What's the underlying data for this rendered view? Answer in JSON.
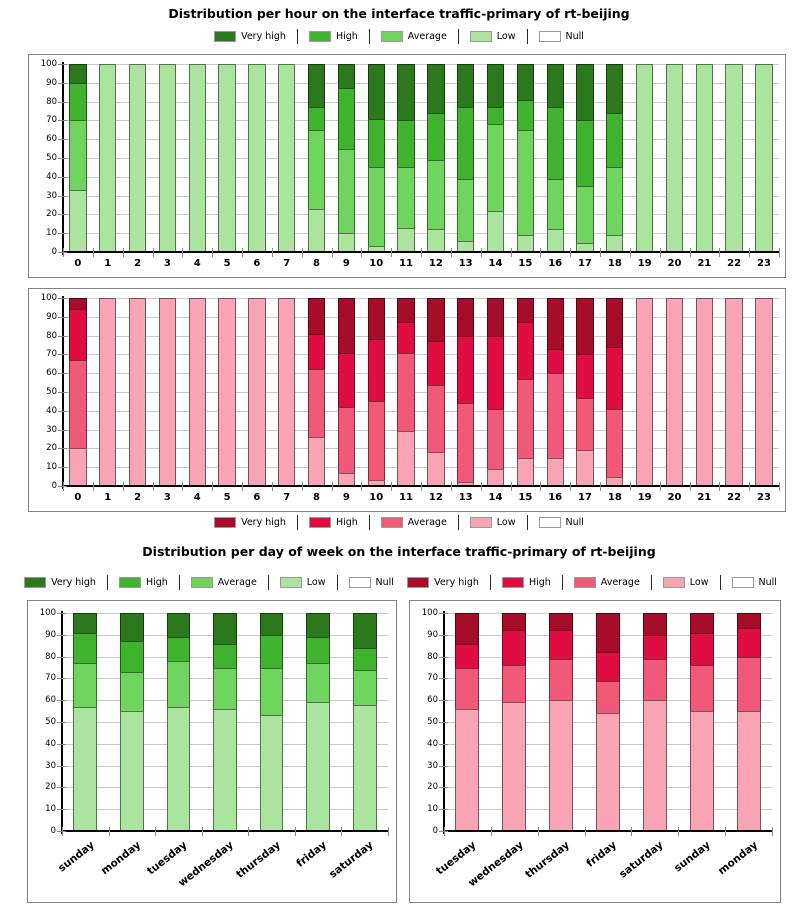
{
  "titles": {
    "hourly": "Distribution per hour on the interface traffic-primary of rt-beijing",
    "daily": "Distribution per day of week on the interface traffic-primary of rt-beijing"
  },
  "legend": {
    "labels": [
      "Very high",
      "High",
      "Average",
      "Low",
      "Null"
    ]
  },
  "palettes": {
    "green": {
      "Very high": "#2c781d",
      "High": "#3fb22e",
      "Average": "#6fd55e",
      "Low": "#aae49f",
      "Null": "#ffffff"
    },
    "red": {
      "Very high": "#a50d29",
      "High": "#e00d42",
      "Average": "#f05a78",
      "Low": "#f8a4b5",
      "Null": "#ffffff"
    }
  },
  "chart_data": [
    {
      "id": "hours-green",
      "type": "bar",
      "stacked": true,
      "palette": "green",
      "x_label_style": "horizontal",
      "ylim": [
        0,
        100
      ],
      "y_tick_step": 10,
      "grid": true,
      "legend_position": "above",
      "categories": [
        "0",
        "1",
        "2",
        "3",
        "4",
        "5",
        "6",
        "7",
        "8",
        "9",
        "10",
        "11",
        "12",
        "13",
        "14",
        "15",
        "16",
        "17",
        "18",
        "19",
        "20",
        "21",
        "22",
        "23"
      ],
      "series": [
        {
          "name": "Low",
          "values": [
            33,
            100,
            100,
            100,
            100,
            100,
            100,
            100,
            23,
            10,
            3,
            13,
            12,
            6,
            22,
            9,
            12,
            5,
            9,
            100,
            100,
            100,
            100,
            100
          ]
        },
        {
          "name": "Average",
          "values": [
            37,
            0,
            0,
            0,
            0,
            0,
            0,
            0,
            42,
            45,
            42,
            32,
            37,
            33,
            46,
            56,
            27,
            30,
            36,
            0,
            0,
            0,
            0,
            0
          ]
        },
        {
          "name": "High",
          "values": [
            20,
            0,
            0,
            0,
            0,
            0,
            0,
            0,
            12,
            32,
            26,
            25,
            25,
            38,
            9,
            16,
            38,
            35,
            29,
            0,
            0,
            0,
            0,
            0
          ]
        },
        {
          "name": "Very high",
          "values": [
            10,
            0,
            0,
            0,
            0,
            0,
            0,
            0,
            23,
            13,
            29,
            30,
            26,
            23,
            23,
            19,
            23,
            30,
            26,
            0,
            0,
            0,
            0,
            0
          ]
        }
      ]
    },
    {
      "id": "hours-red",
      "type": "bar",
      "stacked": true,
      "palette": "red",
      "x_label_style": "horizontal",
      "ylim": [
        0,
        100
      ],
      "y_tick_step": 10,
      "grid": true,
      "legend_position": "below",
      "categories": [
        "0",
        "1",
        "2",
        "3",
        "4",
        "5",
        "6",
        "7",
        "8",
        "9",
        "10",
        "11",
        "12",
        "13",
        "14",
        "15",
        "16",
        "17",
        "18",
        "19",
        "20",
        "21",
        "22",
        "23"
      ],
      "series": [
        {
          "name": "Low",
          "values": [
            20,
            100,
            100,
            100,
            100,
            100,
            100,
            100,
            26,
            7,
            3,
            29,
            18,
            2,
            9,
            15,
            15,
            19,
            5,
            100,
            100,
            100,
            100,
            100
          ]
        },
        {
          "name": "Average",
          "values": [
            47,
            0,
            0,
            0,
            0,
            0,
            0,
            0,
            36,
            35,
            42,
            42,
            36,
            42,
            32,
            42,
            45,
            28,
            36,
            0,
            0,
            0,
            0,
            0
          ]
        },
        {
          "name": "High",
          "values": [
            27,
            0,
            0,
            0,
            0,
            0,
            0,
            0,
            19,
            29,
            33,
            16,
            23,
            36,
            39,
            30,
            13,
            23,
            33,
            0,
            0,
            0,
            0,
            0
          ]
        },
        {
          "name": "Very high",
          "values": [
            6,
            0,
            0,
            0,
            0,
            0,
            0,
            0,
            19,
            29,
            22,
            13,
            23,
            20,
            20,
            13,
            27,
            30,
            26,
            0,
            0,
            0,
            0,
            0
          ]
        }
      ]
    },
    {
      "id": "days-green",
      "type": "bar",
      "stacked": true,
      "palette": "green",
      "x_label_style": "rotated",
      "ylim": [
        0,
        100
      ],
      "y_tick_step": 10,
      "grid": true,
      "legend_position": "above",
      "categories": [
        "sunday",
        "monday",
        "tuesday",
        "wednesday",
        "thursday",
        "friday",
        "saturday"
      ],
      "series": [
        {
          "name": "Low",
          "values": [
            57,
            55,
            57,
            56,
            53,
            59,
            58
          ]
        },
        {
          "name": "Average",
          "values": [
            20,
            18,
            21,
            19,
            22,
            18,
            16
          ]
        },
        {
          "name": "High",
          "values": [
            14,
            14,
            11,
            11,
            15,
            12,
            10
          ]
        },
        {
          "name": "Very high",
          "values": [
            9,
            13,
            11,
            14,
            10,
            11,
            16
          ]
        }
      ]
    },
    {
      "id": "days-red",
      "type": "bar",
      "stacked": true,
      "palette": "red",
      "x_label_style": "rotated",
      "ylim": [
        0,
        100
      ],
      "y_tick_step": 10,
      "grid": true,
      "legend_position": "above",
      "categories": [
        "tuesday",
        "wednesday",
        "thursday",
        "friday",
        "saturday",
        "sunday",
        "monday"
      ],
      "series": [
        {
          "name": "Low",
          "values": [
            56,
            59,
            60,
            54,
            60,
            55,
            55
          ]
        },
        {
          "name": "Average",
          "values": [
            19,
            17,
            19,
            15,
            19,
            21,
            25
          ]
        },
        {
          "name": "High",
          "values": [
            11,
            16,
            13,
            13,
            11,
            15,
            13
          ]
        },
        {
          "name": "Very high",
          "values": [
            14,
            8,
            8,
            18,
            10,
            9,
            7
          ]
        }
      ]
    }
  ]
}
